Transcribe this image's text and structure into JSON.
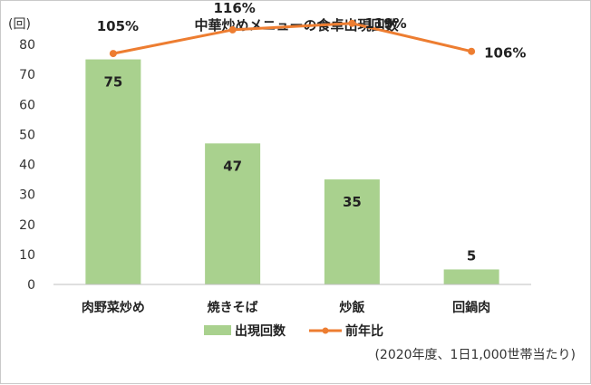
{
  "chart_data": {
    "type": "bar",
    "title": "中華炒めメニューの食卓出現回数",
    "y_unit_label": "(回)",
    "ylim": [
      0,
      80
    ],
    "y_ticks": [
      "0",
      "10",
      "20",
      "30",
      "40",
      "50",
      "60",
      "70",
      "80"
    ],
    "categories": [
      "肉野菜炒め",
      "焼きそば",
      "炒飯",
      "回鍋肉"
    ],
    "series": [
      {
        "name": "出現回数",
        "kind": "bar",
        "color": "#a9d18e",
        "values": [
          75,
          47,
          35,
          5
        ],
        "labels": [
          "75",
          "47",
          "35",
          "5"
        ]
      },
      {
        "name": "前年比",
        "kind": "line",
        "color": "#ed7d31",
        "values": [
          105,
          116,
          119,
          106
        ],
        "labels": [
          "105%",
          "116%",
          "119%",
          "106%"
        ]
      }
    ],
    "legend_position": "bottom",
    "grid": false,
    "note": "(2020年度、1日1,000世帯当たり)"
  }
}
